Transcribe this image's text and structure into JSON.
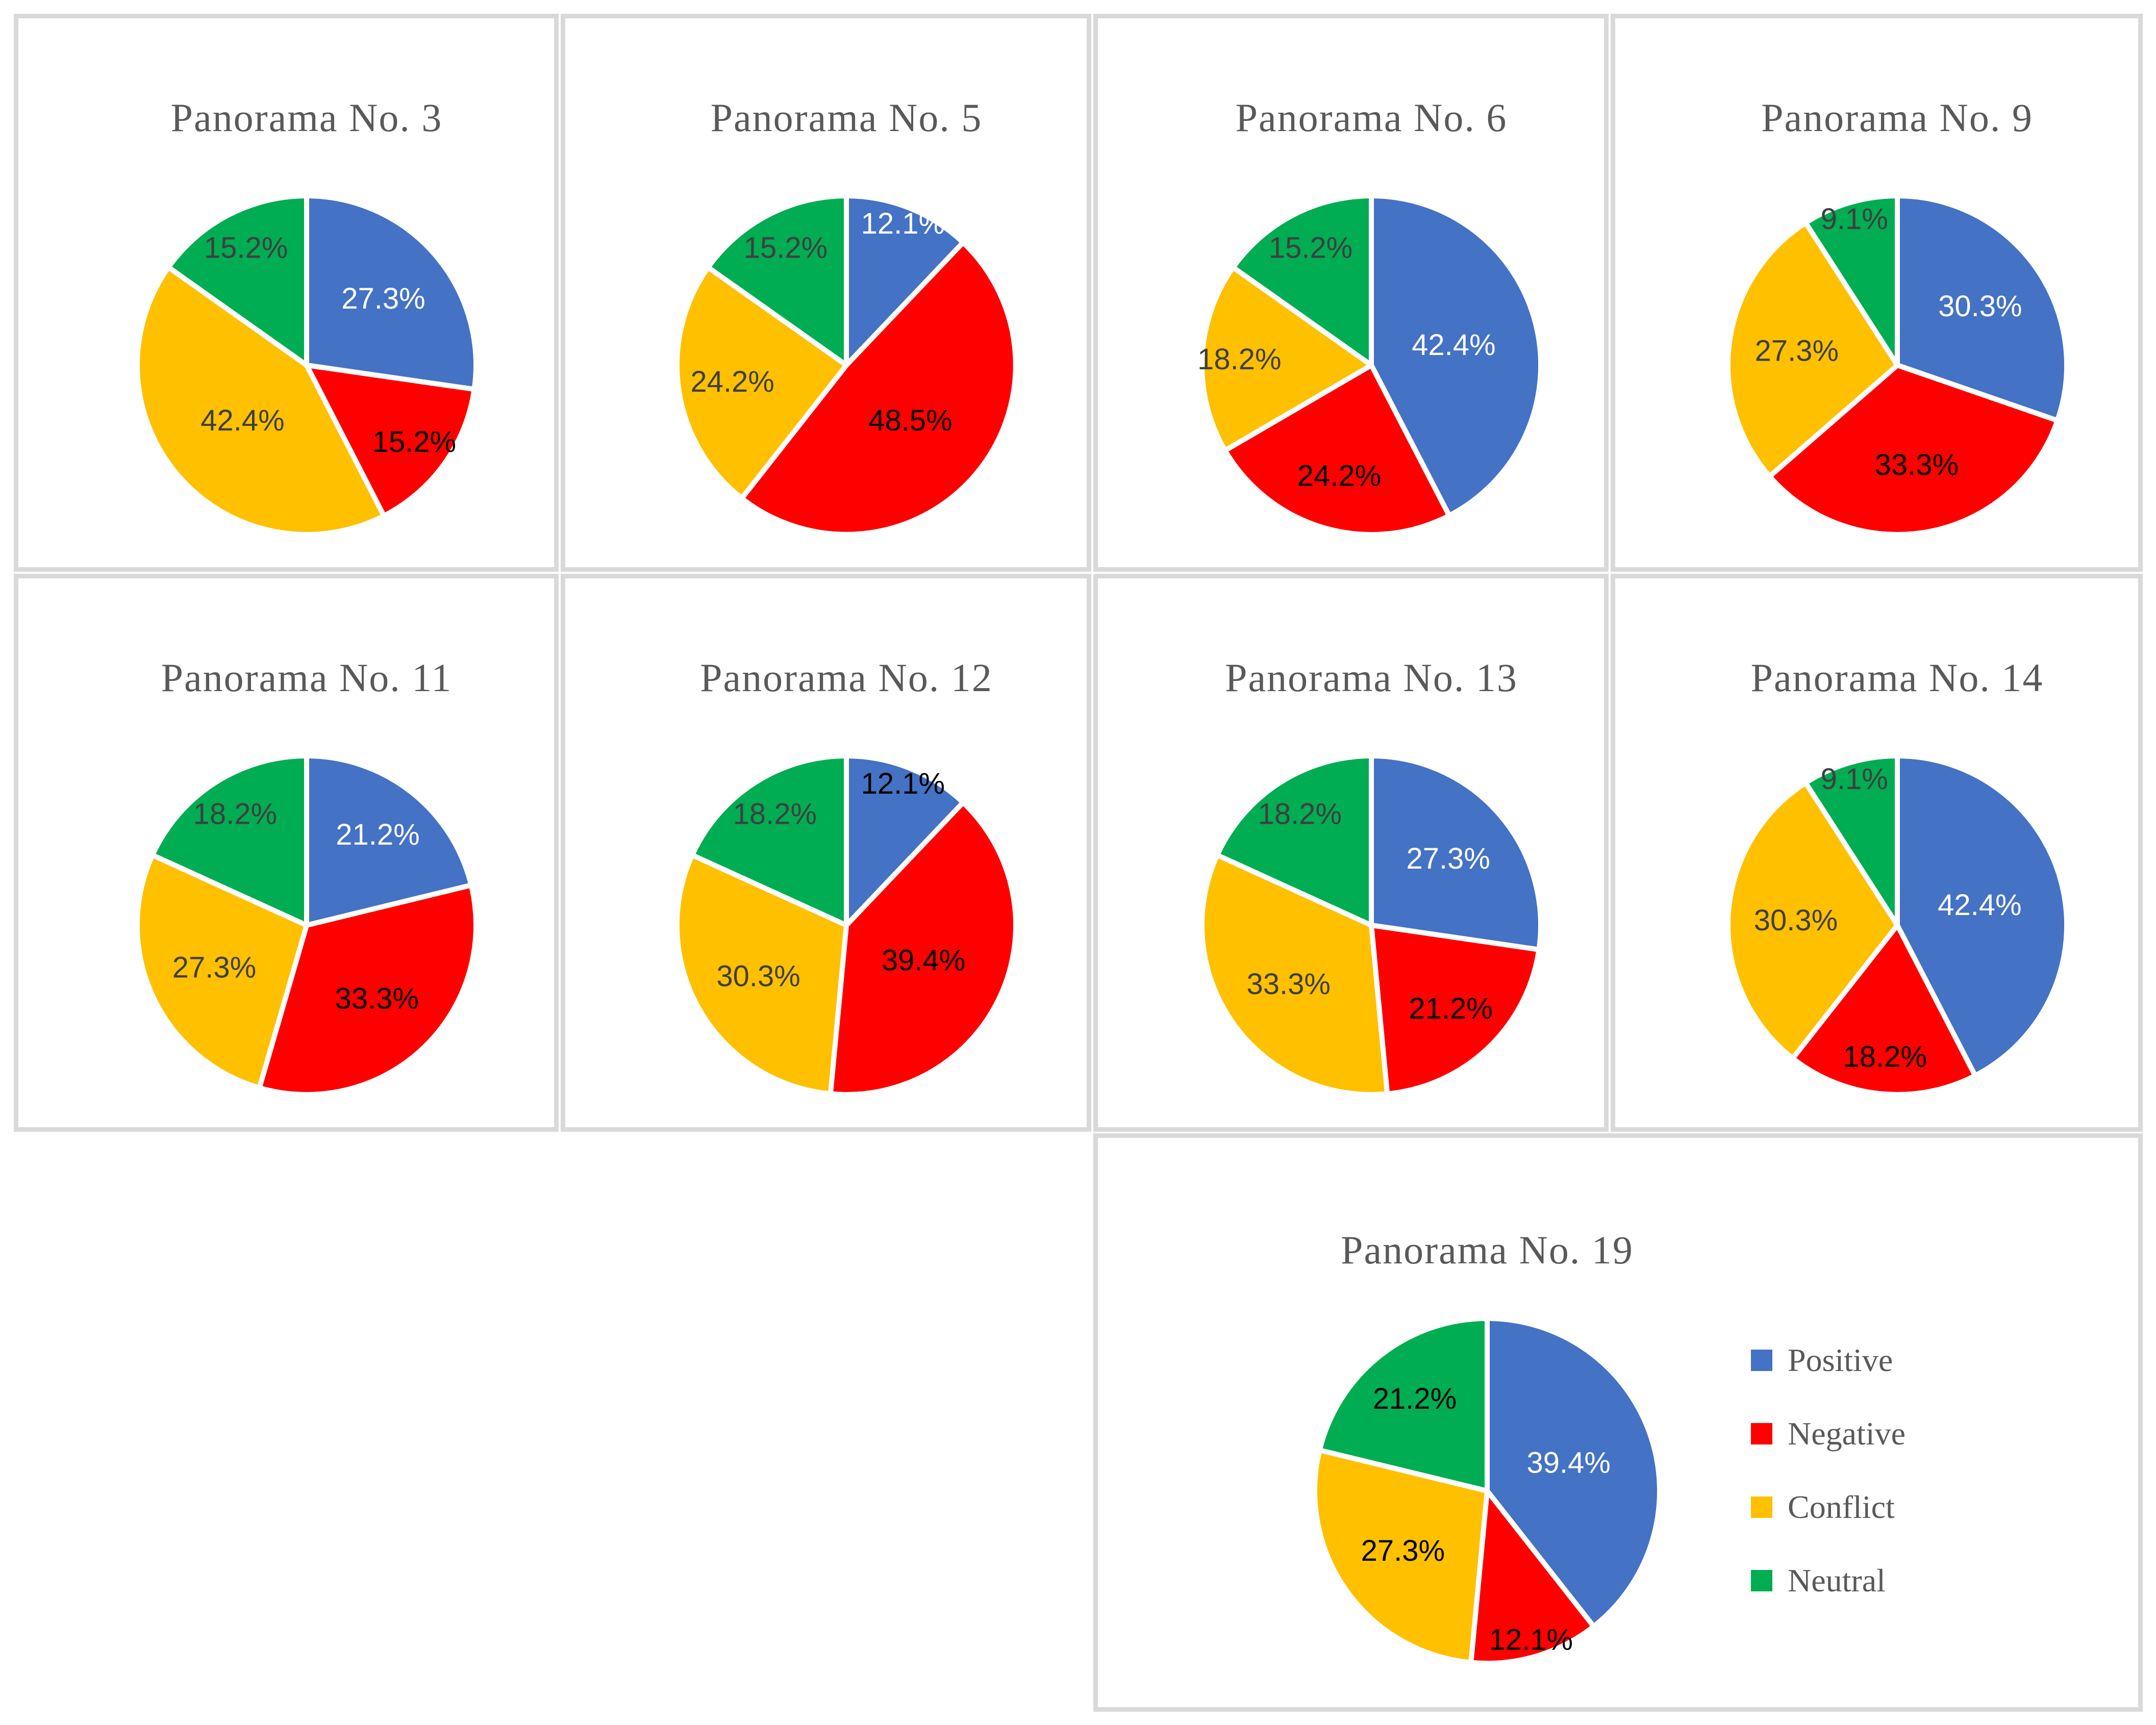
{
  "colors": {
    "positive": "#4472C4",
    "negative": "#FF0000",
    "conflict": "#FFC000",
    "neutral": "#00AD52"
  },
  "panel_border_color": "#D9D9D9",
  "title_color": "#595959",
  "legend": {
    "position": "right-of-last-chart",
    "items": [
      {
        "label": "Positive",
        "color": "#4472C4"
      },
      {
        "label": "Negative",
        "color": "#FF0000"
      },
      {
        "label": "Conflict",
        "color": "#FFC000"
      },
      {
        "label": "Neutral",
        "color": "#00AD52"
      }
    ]
  },
  "chart_data": [
    {
      "type": "pie",
      "title": "Panorama No. 3",
      "categories": [
        "Positive",
        "Negative",
        "Conflict",
        "Neutral"
      ],
      "values": [
        27.3,
        15.2,
        42.4,
        15.2
      ],
      "labels": [
        "27.3%",
        "15.2%",
        "42.4%",
        "15.2%"
      ],
      "label_colors": [
        "#FFFFFF",
        "#000000",
        "#3F3F3F",
        "#3F3F3F"
      ]
    },
    {
      "type": "pie",
      "title": "Panorama No. 5",
      "categories": [
        "Positive",
        "Negative",
        "Conflict",
        "Neutral"
      ],
      "values": [
        12.1,
        48.5,
        24.2,
        15.2
      ],
      "labels": [
        "12.1%",
        "48.5%",
        "24.2%",
        "15.2%"
      ],
      "label_colors": [
        "#FFFFFF",
        "#000000",
        "#3F3F3F",
        "#3F3F3F"
      ]
    },
    {
      "type": "pie",
      "title": "Panorama No. 6",
      "categories": [
        "Positive",
        "Negative",
        "Conflict",
        "Neutral"
      ],
      "values": [
        42.4,
        24.2,
        18.2,
        15.2
      ],
      "labels": [
        "42.4%",
        "24.2%",
        "18.2%",
        "15.2%"
      ],
      "label_colors": [
        "#FFFFFF",
        "#000000",
        "#3F3F3F",
        "#3F3F3F"
      ]
    },
    {
      "type": "pie",
      "title": "Panorama No. 9",
      "categories": [
        "Positive",
        "Negative",
        "Conflict",
        "Neutral"
      ],
      "values": [
        30.3,
        33.3,
        27.3,
        9.1
      ],
      "labels": [
        "30.3%",
        "33.3%",
        "27.3%",
        "9.1%"
      ],
      "label_colors": [
        "#FFFFFF",
        "#000000",
        "#3F3F3F",
        "#3F3F3F"
      ]
    },
    {
      "type": "pie",
      "title": "Panorama No. 11",
      "categories": [
        "Positive",
        "Negative",
        "Conflict",
        "Neutral"
      ],
      "values": [
        21.2,
        33.3,
        27.3,
        18.2
      ],
      "labels": [
        "21.2%",
        "33.3%",
        "27.3%",
        "18.2%"
      ],
      "label_colors": [
        "#FFFFFF",
        "#000000",
        "#3F3F3F",
        "#3F3F3F"
      ]
    },
    {
      "type": "pie",
      "title": "Panorama No. 12",
      "categories": [
        "Positive",
        "Negative",
        "Conflict",
        "Neutral"
      ],
      "values": [
        12.1,
        39.4,
        30.3,
        18.2
      ],
      "labels": [
        "12.1%",
        "39.4%",
        "30.3%",
        "18.2%"
      ],
      "label_colors": [
        "#000000",
        "#000000",
        "#3F3F3F",
        "#3F3F3F"
      ]
    },
    {
      "type": "pie",
      "title": "Panorama No. 13",
      "categories": [
        "Positive",
        "Negative",
        "Conflict",
        "Neutral"
      ],
      "values": [
        27.3,
        21.2,
        33.3,
        18.2
      ],
      "labels": [
        "27.3%",
        "21.2%",
        "33.3%",
        "18.2%"
      ],
      "label_colors": [
        "#FFFFFF",
        "#000000",
        "#3F3F3F",
        "#3F3F3F"
      ]
    },
    {
      "type": "pie",
      "title": "Panorama No. 14",
      "categories": [
        "Positive",
        "Negative",
        "Conflict",
        "Neutral"
      ],
      "values": [
        42.4,
        18.2,
        30.3,
        9.1
      ],
      "labels": [
        "42.4%",
        "18.2%",
        "30.3%",
        "9.1%"
      ],
      "label_colors": [
        "#FFFFFF",
        "#000000",
        "#3F3F3F",
        "#3F3F3F"
      ]
    },
    {
      "type": "pie",
      "title": "Panorama No. 19",
      "categories": [
        "Positive",
        "Negative",
        "Conflict",
        "Neutral"
      ],
      "values": [
        39.4,
        12.1,
        27.3,
        21.2
      ],
      "labels": [
        "39.4%",
        "12.1%",
        "27.3%",
        "21.2%"
      ],
      "label_colors": [
        "#FFFFFF",
        "#000000",
        "#000000",
        "#000000"
      ]
    }
  ]
}
